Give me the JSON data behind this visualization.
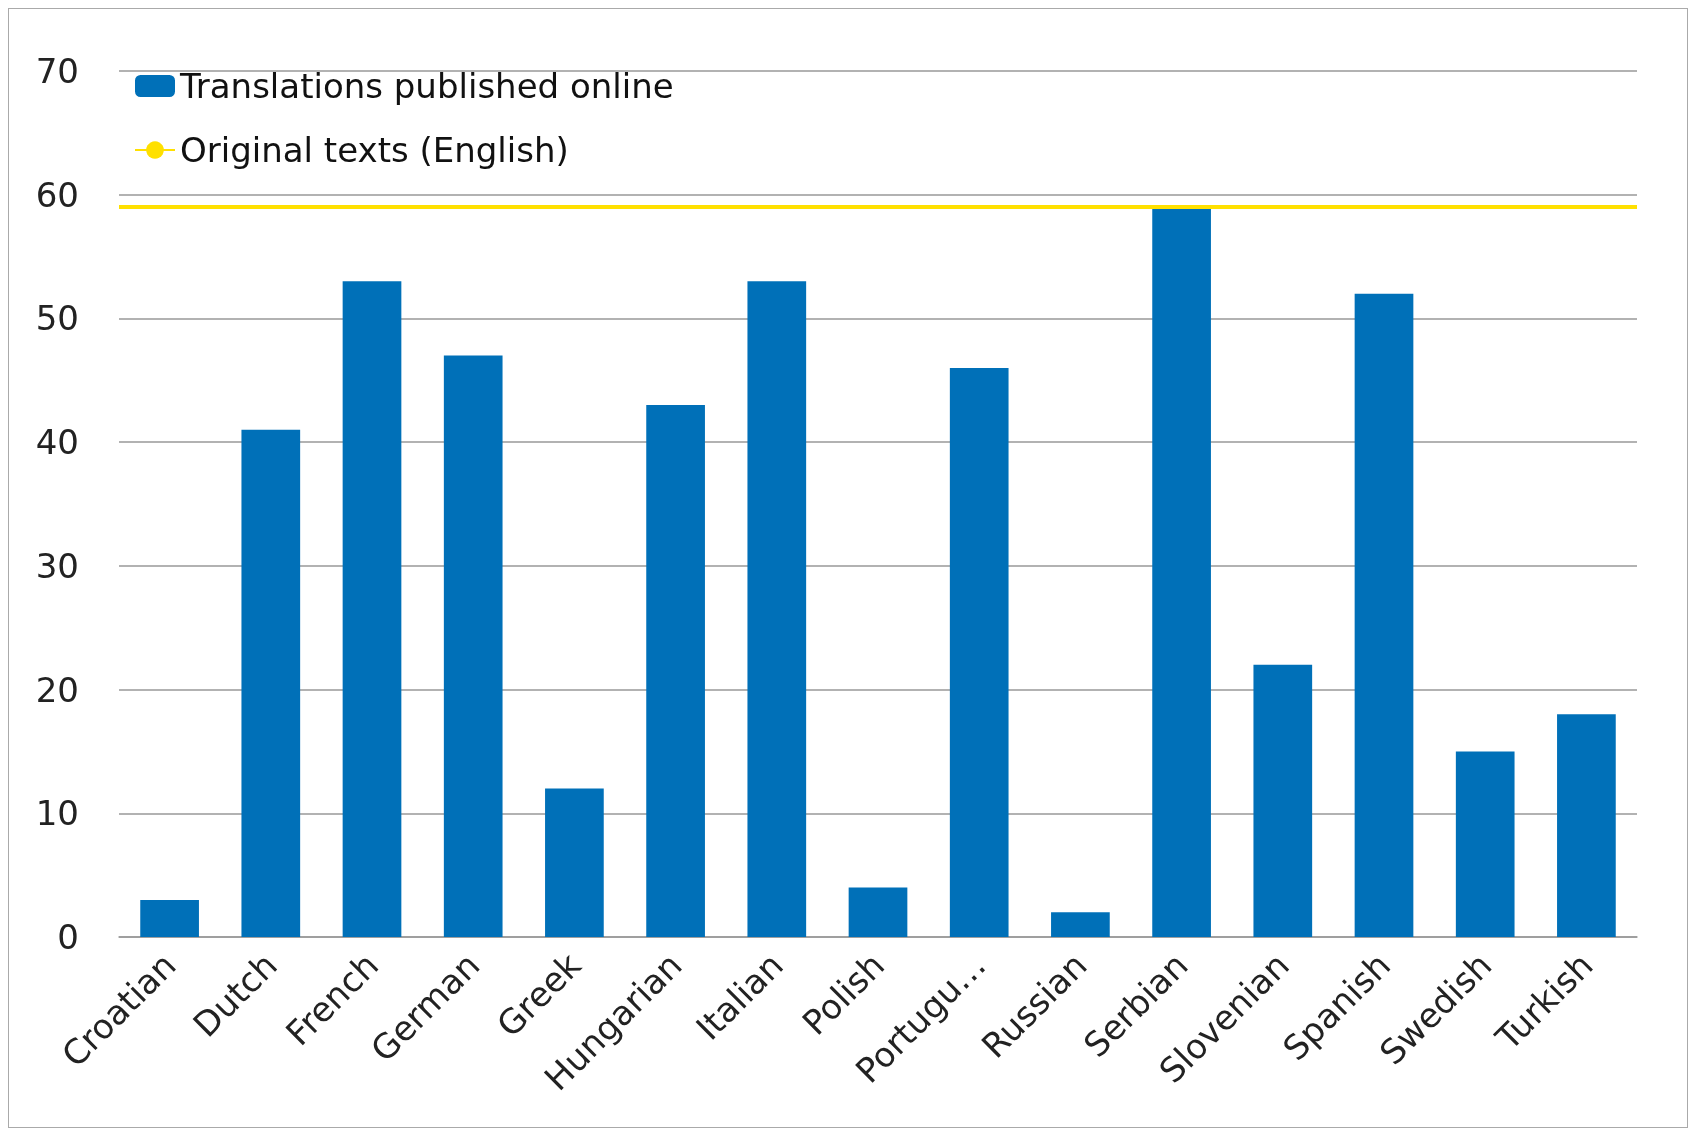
{
  "chart_data": {
    "type": "bar",
    "categories": [
      "Croatian",
      "Dutch",
      "French",
      "German",
      "Greek",
      "Hungarian",
      "Italian",
      "Polish",
      "Portugu…",
      "Russian",
      "Serbian",
      "Slovenian",
      "Spanish",
      "Swedish",
      "Turkish"
    ],
    "series": [
      {
        "name": "Translations published online",
        "color": "#0070b8",
        "values": [
          3,
          41,
          53,
          47,
          12,
          43,
          53,
          4,
          46,
          2,
          59,
          22,
          52,
          15,
          18
        ]
      }
    ],
    "ref_lines": [
      {
        "axis": "y",
        "value": 59,
        "label": "Original texts (English)",
        "color": "#ffe000",
        "line_style": "solid"
      }
    ],
    "ylim": [
      0,
      70
    ],
    "yticks": [
      0,
      10,
      20,
      30,
      40,
      50,
      60,
      70
    ],
    "grid": "y",
    "legend": "top left"
  }
}
